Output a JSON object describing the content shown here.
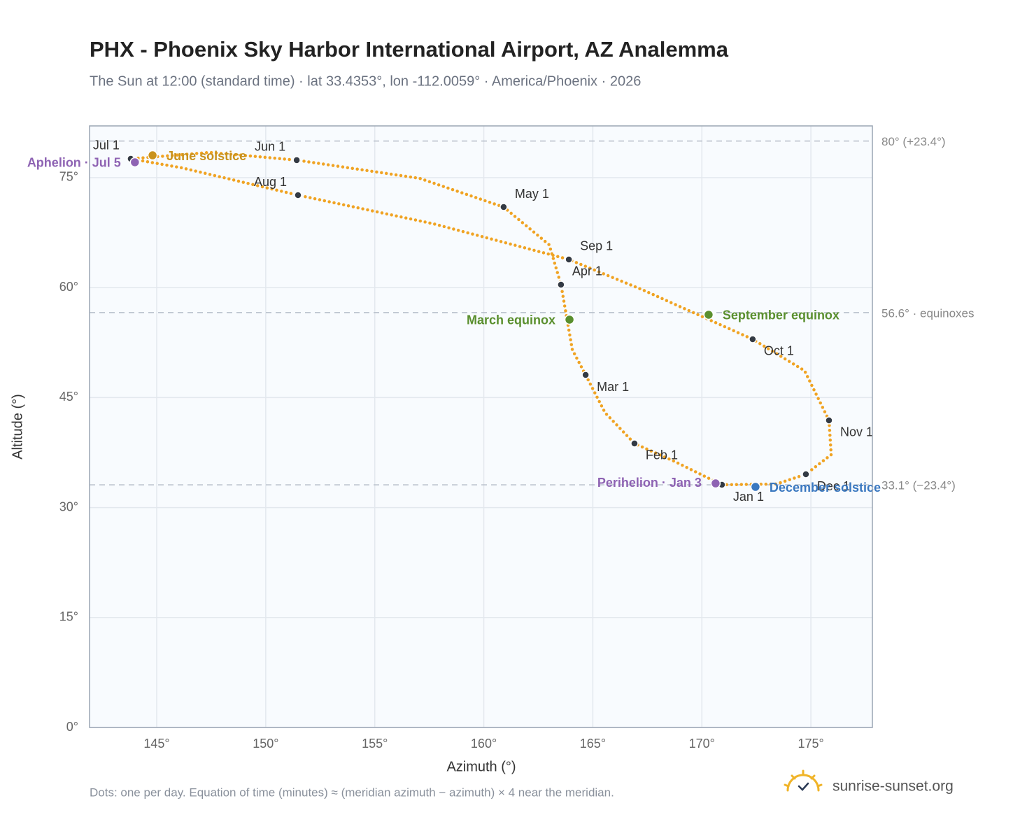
{
  "chart_data": {
    "type": "scatter",
    "title": "PHX - Phoenix Sky Harbor International Airport, AZ Analemma",
    "subtitle": "The Sun at 12:00 (standard time) · lat 33.4353°, lon -112.0059° · America/Phoenix · 2026",
    "x_label": "Azimuth (°)",
    "y_label": "Altitude (°)",
    "xlim": [
      141.92,
      177.82
    ],
    "ylim": [
      0,
      82.06
    ],
    "grid": true,
    "xticks": [
      {
        "value": 145,
        "label": "145°"
      },
      {
        "value": 150,
        "label": "150°"
      },
      {
        "value": 155,
        "label": "155°"
      },
      {
        "value": 160,
        "label": "160°"
      },
      {
        "value": 165,
        "label": "165°"
      },
      {
        "value": 170,
        "label": "170°"
      },
      {
        "value": 175,
        "label": "175°"
      }
    ],
    "yticks": [
      {
        "value": 0,
        "label": "0°"
      },
      {
        "value": 15,
        "label": "15°"
      },
      {
        "value": 30,
        "label": "30°"
      },
      {
        "value": 45,
        "label": "45°"
      },
      {
        "value": 60,
        "label": "60°"
      },
      {
        "value": 75,
        "label": "75°"
      }
    ],
    "reference_lines": [
      {
        "value": 80,
        "label": "80° (+23.4°)"
      },
      {
        "value": 56.6,
        "label": "56.6° · equinoxes"
      },
      {
        "value": 33.1,
        "label": "33.1° (−23.4°)"
      }
    ],
    "curve": {
      "color": "#f0a323",
      "x": [
        170.92,
        168.77,
        166.91,
        165.56,
        164.67,
        164.06,
        163.54,
        163.0,
        160.91,
        157.06,
        151.42,
        147.44,
        143.81,
        146.15,
        151.48,
        157.7,
        163.9,
        167.33,
        172.33,
        174.71,
        175.83,
        175.93,
        174.77,
        173.42
      ],
      "y": [
        33.11,
        36.26,
        38.74,
        42.94,
        48.09,
        51.53,
        60.4,
        65.84,
        70.99,
        74.9,
        77.39,
        78.44,
        77.58,
        76.34,
        72.61,
        68.7,
        63.84,
        59.64,
        52.96,
        48.66,
        41.89,
        37.21,
        34.54,
        33.21
      ]
    },
    "month_markers": {
      "color": "#333a44",
      "labels": [
        "Jan 1",
        "Feb 1",
        "Mar 1",
        "Apr 1",
        "May 1",
        "Jun 1",
        "Jul 1",
        "Aug 1",
        "Sep 1",
        "Oct 1",
        "Nov 1",
        "Dec 1"
      ],
      "x": [
        170.92,
        166.91,
        164.67,
        163.54,
        160.91,
        151.42,
        143.81,
        151.48,
        163.9,
        172.33,
        175.83,
        174.77
      ],
      "y": [
        33.11,
        38.74,
        48.09,
        60.4,
        70.99,
        77.39,
        77.58,
        72.61,
        63.84,
        52.96,
        41.89,
        34.54
      ]
    },
    "events": [
      {
        "label": "June solstice",
        "color": "#c9921c",
        "x": 144.81,
        "y": 78.05
      },
      {
        "label": "Aphelion · Jul 5",
        "color": "#8e63b3",
        "x": 144.0,
        "y": 77.1
      },
      {
        "label": "March equinox",
        "color": "#5a8f2e",
        "x": 163.93,
        "y": 55.63
      },
      {
        "label": "September equinox",
        "color": "#5a8f2e",
        "x": 170.31,
        "y": 56.3
      },
      {
        "label": "Perihelion · Jan 3",
        "color": "#8e63b3",
        "x": 170.63,
        "y": 33.3
      },
      {
        "label": "December solstice",
        "color": "#3a78c0",
        "x": 172.46,
        "y": 32.82
      }
    ],
    "footnote": "Dots: one per day. Equation of time (minutes) ≈ (meridian azimuth − azimuth) × 4 near the meridian.",
    "brand": "sunrise-sunset.org"
  }
}
